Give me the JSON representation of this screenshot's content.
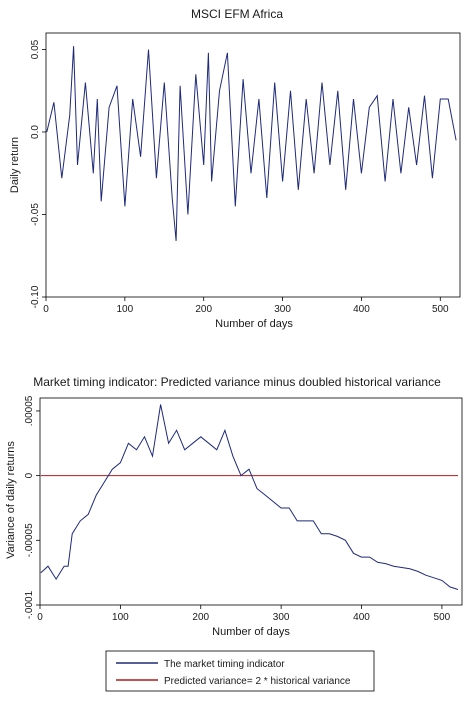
{
  "colors": {
    "series": "#1f2a7a",
    "reference": "#b01c1c",
    "axis": "#000000"
  },
  "chart_data": [
    {
      "type": "line",
      "title": "MSCI EFM Africa",
      "xlabel": "Number of days",
      "ylabel": "Daily return",
      "xlim": [
        0,
        525
      ],
      "ylim": [
        -0.1,
        0.06
      ],
      "x_ticks": [
        0,
        100,
        200,
        300,
        400,
        500
      ],
      "x_tick_labels": [
        "0",
        "100",
        "200",
        "300",
        "400",
        "500"
      ],
      "y_ticks": [
        -0.1,
        -0.05,
        0.0,
        0.05
      ],
      "y_tick_labels": [
        "-0.10",
        "-0.05",
        "0.0",
        "0.05"
      ],
      "grid": false,
      "series": [
        {
          "x": [
            1,
            10,
            20,
            30,
            35,
            40,
            50,
            60,
            65,
            70,
            80,
            90,
            100,
            110,
            120,
            130,
            140,
            150,
            160,
            165,
            170,
            180,
            190,
            200,
            206,
            210,
            220,
            230,
            240,
            250,
            260,
            270,
            280,
            290,
            300,
            310,
            320,
            330,
            340,
            350,
            360,
            370,
            380,
            390,
            400,
            410,
            420,
            430,
            440,
            450,
            460,
            470,
            480,
            490,
            500,
            510,
            520
          ],
          "values": [
            0.0,
            0.018,
            -0.028,
            0.01,
            0.052,
            -0.02,
            0.03,
            -0.025,
            0.02,
            -0.042,
            0.015,
            0.028,
            -0.045,
            0.02,
            -0.015,
            0.05,
            -0.028,
            0.03,
            -0.04,
            -0.066,
            0.028,
            -0.05,
            0.035,
            -0.02,
            0.048,
            -0.03,
            0.025,
            0.048,
            -0.045,
            0.032,
            -0.025,
            0.02,
            -0.04,
            0.03,
            -0.03,
            0.025,
            -0.035,
            0.02,
            -0.025,
            0.03,
            -0.02,
            0.025,
            -0.035,
            0.02,
            -0.025,
            0.015,
            0.022,
            -0.03,
            0.02,
            -0.025,
            0.015,
            -0.02,
            0.022,
            -0.028,
            0.02,
            0.02,
            -0.005
          ]
        }
      ]
    },
    {
      "type": "line",
      "title": "Market timing indicator: Predicted variance minus doubled historical variance",
      "xlabel": "Number of days",
      "ylabel": "Variance of daily returns",
      "xlim": [
        0,
        525
      ],
      "ylim": [
        -0.0001,
        6e-05
      ],
      "x_ticks": [
        0,
        100,
        200,
        300,
        400,
        500
      ],
      "x_tick_labels": [
        "0",
        "100",
        "200",
        "300",
        "400",
        "500"
      ],
      "y_ticks": [
        -0.0001,
        -5e-05,
        0,
        5e-05
      ],
      "y_tick_labels": [
        "-.0001",
        "-.00005",
        "0",
        ".00005"
      ],
      "grid": false,
      "legend_placement": "bottom",
      "series": [
        {
          "name": "The market timing indicator",
          "x": [
            1,
            10,
            20,
            30,
            35,
            40,
            50,
            60,
            70,
            80,
            90,
            100,
            110,
            120,
            130,
            140,
            150,
            160,
            170,
            180,
            190,
            200,
            210,
            220,
            230,
            240,
            250,
            260,
            270,
            280,
            290,
            300,
            310,
            320,
            330,
            340,
            350,
            360,
            370,
            380,
            390,
            400,
            410,
            420,
            430,
            440,
            450,
            460,
            470,
            480,
            490,
            500,
            510,
            520
          ],
          "values": [
            -7.5e-05,
            -7e-05,
            -8e-05,
            -7e-05,
            -7e-05,
            -4.5e-05,
            -3.5e-05,
            -3e-05,
            -1.5e-05,
            -5e-06,
            5e-06,
            1e-05,
            2.5e-05,
            2e-05,
            3e-05,
            1.5e-05,
            5.5e-05,
            2.5e-05,
            3.5e-05,
            2e-05,
            2.5e-05,
            3e-05,
            2.5e-05,
            2e-05,
            3.5e-05,
            1.5e-05,
            0.0,
            5e-06,
            -1e-05,
            -1.5e-05,
            -2e-05,
            -2.5e-05,
            -2.5e-05,
            -3.5e-05,
            -3.5e-05,
            -3.5e-05,
            -4.5e-05,
            -4.5e-05,
            -4.7e-05,
            -5e-05,
            -6e-05,
            -6.3e-05,
            -6.3e-05,
            -6.7e-05,
            -6.8e-05,
            -7e-05,
            -7.1e-05,
            -7.2e-05,
            -7.4e-05,
            -7.7e-05,
            -7.9e-05,
            -8.1e-05,
            -8.6e-05,
            -8.8e-05
          ]
        },
        {
          "name": "Predicted variance= 2 * historical variance",
          "x": [
            1,
            520
          ],
          "values": [
            0,
            0
          ]
        }
      ]
    }
  ]
}
